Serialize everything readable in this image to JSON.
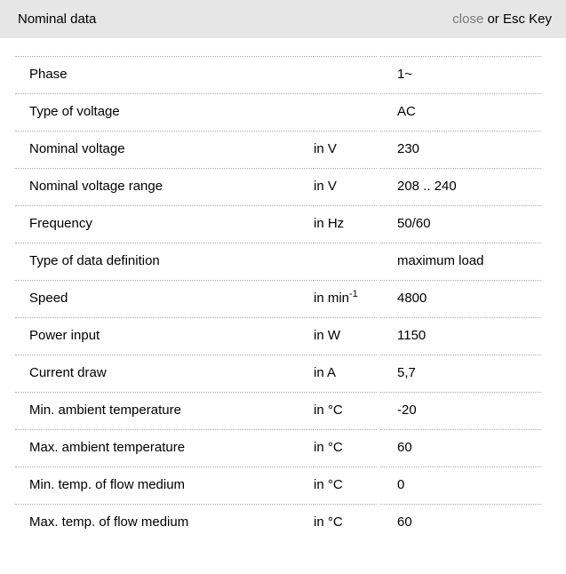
{
  "header": {
    "title": "Nominal data",
    "close_label": "close",
    "close_suffix": " or Esc Key"
  },
  "colors": {
    "header_background": "#e6e6e6",
    "close_link": "#7a7a7a",
    "row_border": "#aaaaaa",
    "text": "#000000",
    "background": "#ffffff"
  },
  "table": {
    "rows": [
      {
        "label": "Phase",
        "unit": "",
        "unit_sup": "",
        "value": "1~"
      },
      {
        "label": "Type of voltage",
        "unit": "",
        "unit_sup": "",
        "value": "AC"
      },
      {
        "label": "Nominal voltage",
        "unit": "in V",
        "unit_sup": "",
        "value": "230"
      },
      {
        "label": "Nominal voltage range",
        "unit": "in V",
        "unit_sup": "",
        "value": "208 .. 240"
      },
      {
        "label": "Frequency",
        "unit": "in Hz",
        "unit_sup": "",
        "value": "50/60"
      },
      {
        "label": "Type of data definition",
        "unit": "",
        "unit_sup": "",
        "value": "maximum load"
      },
      {
        "label": "Speed",
        "unit": "in min",
        "unit_sup": "-1",
        "value": "4800"
      },
      {
        "label": "Power input",
        "unit": "in W",
        "unit_sup": "",
        "value": "1150"
      },
      {
        "label": "Current draw",
        "unit": "in A",
        "unit_sup": "",
        "value": "5,7"
      },
      {
        "label": "Min. ambient temperature",
        "unit": "in °C",
        "unit_sup": "",
        "value": "-20"
      },
      {
        "label": "Max. ambient temperature",
        "unit": "in °C",
        "unit_sup": "",
        "value": "60"
      },
      {
        "label": "Min. temp. of flow medium",
        "unit": "in °C",
        "unit_sup": "",
        "value": "0"
      },
      {
        "label": "Max. temp. of flow medium",
        "unit": "in °C",
        "unit_sup": "",
        "value": "60"
      }
    ]
  }
}
